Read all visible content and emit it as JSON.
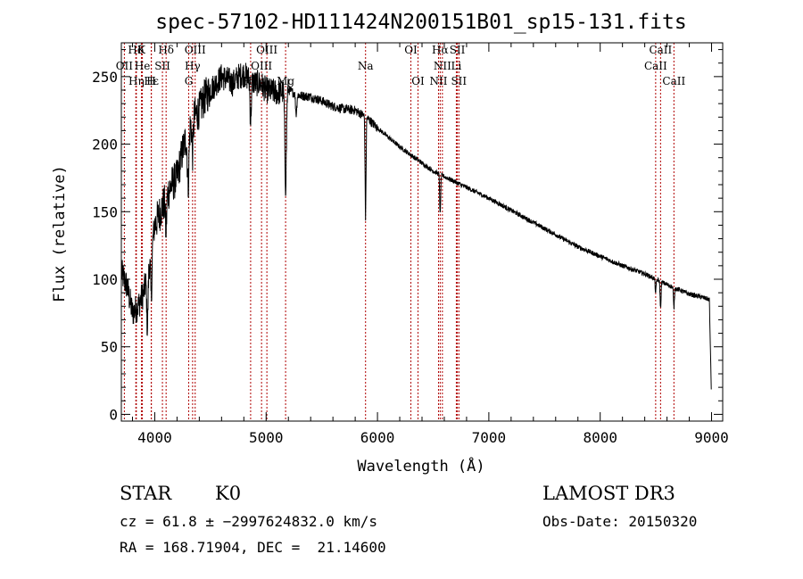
{
  "chart_data": {
    "type": "line",
    "title": "spec-57102-HD111424N200151B01_sp15-131.fits",
    "xlabel": "Wavelength (Å)",
    "ylabel": "Flux (relative)",
    "xlim": [
      3700,
      9100
    ],
    "ylim": [
      -5,
      275
    ],
    "x_ticks": [
      4000,
      5000,
      6000,
      7000,
      8000,
      9000
    ],
    "x_tick_labels": [
      "4000",
      "5000",
      "6000",
      "7000",
      "8000",
      "9000"
    ],
    "y_ticks": [
      0,
      50,
      100,
      150,
      200,
      250
    ],
    "y_tick_labels": [
      "0",
      "50",
      "100",
      "150",
      "200",
      "250"
    ],
    "series": [
      {
        "name": "flux",
        "continuum": {
          "x": [
            3700,
            3750,
            3800,
            3850,
            3900,
            3950,
            4000,
            4050,
            4100,
            4150,
            4200,
            4250,
            4300,
            4350,
            4400,
            4450,
            4500,
            4550,
            4600,
            4650,
            4700,
            4750,
            4800,
            4850,
            4900,
            4950,
            5000,
            5100,
            5200,
            5300,
            5400,
            5500,
            5600,
            5700,
            5800,
            5900,
            6000,
            6100,
            6200,
            6300,
            6400,
            6500,
            6600,
            6700,
            6800,
            6900,
            7000,
            7200,
            7400,
            7600,
            7800,
            8000,
            8200,
            8400,
            8600,
            8800,
            8900,
            8980,
            9000
          ],
          "y": [
            105,
            95,
            75,
            80,
            90,
            110,
            140,
            150,
            160,
            170,
            175,
            195,
            210,
            220,
            225,
            235,
            240,
            245,
            250,
            248,
            245,
            250,
            252,
            248,
            245,
            245,
            240,
            238,
            240,
            236,
            235,
            232,
            228,
            226,
            225,
            220,
            212,
            205,
            198,
            192,
            186,
            180,
            176,
            172,
            168,
            164,
            160,
            151,
            142,
            133,
            124,
            117,
            110,
            104,
            96,
            89,
            87,
            85,
            10
          ]
        },
        "absorption_lines": [
          {
            "x": 3934,
            "depth": 40,
            "width": 8
          },
          {
            "x": 3969,
            "depth": 35,
            "width": 8
          },
          {
            "x": 4101,
            "depth": 25,
            "width": 8
          },
          {
            "x": 4300,
            "depth": 40,
            "width": 10
          },
          {
            "x": 4340,
            "depth": 25,
            "width": 8
          },
          {
            "x": 4861,
            "depth": 30,
            "width": 8
          },
          {
            "x": 5175,
            "depth": 70,
            "width": 10
          },
          {
            "x": 5270,
            "depth": 15,
            "width": 8
          },
          {
            "x": 5893,
            "depth": 75,
            "width": 6
          },
          {
            "x": 6563,
            "depth": 30,
            "width": 6
          },
          {
            "x": 8498,
            "depth": 10,
            "width": 6
          },
          {
            "x": 8542,
            "depth": 20,
            "width": 6
          },
          {
            "x": 8662,
            "depth": 15,
            "width": 6
          }
        ]
      }
    ],
    "line_markers": [
      {
        "label": "Hδ",
        "x": 3830,
        "row": 0
      },
      {
        "label": "K",
        "x": 3880,
        "row": 0
      },
      {
        "label": "Hδ",
        "x": 4102,
        "row": 0
      },
      {
        "label": "OIII",
        "x": 4363,
        "row": 0
      },
      {
        "label": "OIII",
        "x": 5007,
        "row": 0
      },
      {
        "label": "OI",
        "x": 6300,
        "row": 0
      },
      {
        "label": "Hα",
        "x": 6563,
        "row": 0
      },
      {
        "label": "SII",
        "x": 6717,
        "row": 0
      },
      {
        "label": "CaII",
        "x": 8542,
        "row": 0
      },
      {
        "label": "OII",
        "x": 3727,
        "row": 1
      },
      {
        "label": "He",
        "x": 3889,
        "row": 1
      },
      {
        "label": "SII",
        "x": 4069,
        "row": 1
      },
      {
        "label": "Hγ",
        "x": 4340,
        "row": 1
      },
      {
        "label": "OIII",
        "x": 4959,
        "row": 1
      },
      {
        "label": "Na",
        "x": 5893,
        "row": 1
      },
      {
        "label": "NII",
        "x": 6583,
        "row": 1
      },
      {
        "label": "Li",
        "x": 6708,
        "row": 1
      },
      {
        "label": "CaII",
        "x": 8498,
        "row": 1
      },
      {
        "label": "Hε",
        "x": 3970,
        "row": 2
      },
      {
        "label": "Hη",
        "x": 3835,
        "row": 2
      },
      {
        "label": "H",
        "x": 3968,
        "row": 2
      },
      {
        "label": "G",
        "x": 4305,
        "row": 2
      },
      {
        "label": "Hβ",
        "x": 4861,
        "row": 2
      },
      {
        "label": "Mg",
        "x": 5175,
        "row": 2
      },
      {
        "label": "OI",
        "x": 6364,
        "row": 2
      },
      {
        "label": "NII",
        "x": 6548,
        "row": 2
      },
      {
        "label": "SII",
        "x": 6731,
        "row": 2
      },
      {
        "label": "CaII",
        "x": 8662,
        "row": 2
      }
    ],
    "marker_line_color": "#b00000",
    "spectrum_color": "#000000"
  },
  "info": {
    "object_class": "STAR",
    "subclass": "K0",
    "survey": "LAMOST DR3",
    "cz": "cz = 61.8 ± −2997624832.0 km/s",
    "obs_date": "Obs-Date: 20150320",
    "coords": "RA = 168.71904, DEC =  21.14600"
  }
}
